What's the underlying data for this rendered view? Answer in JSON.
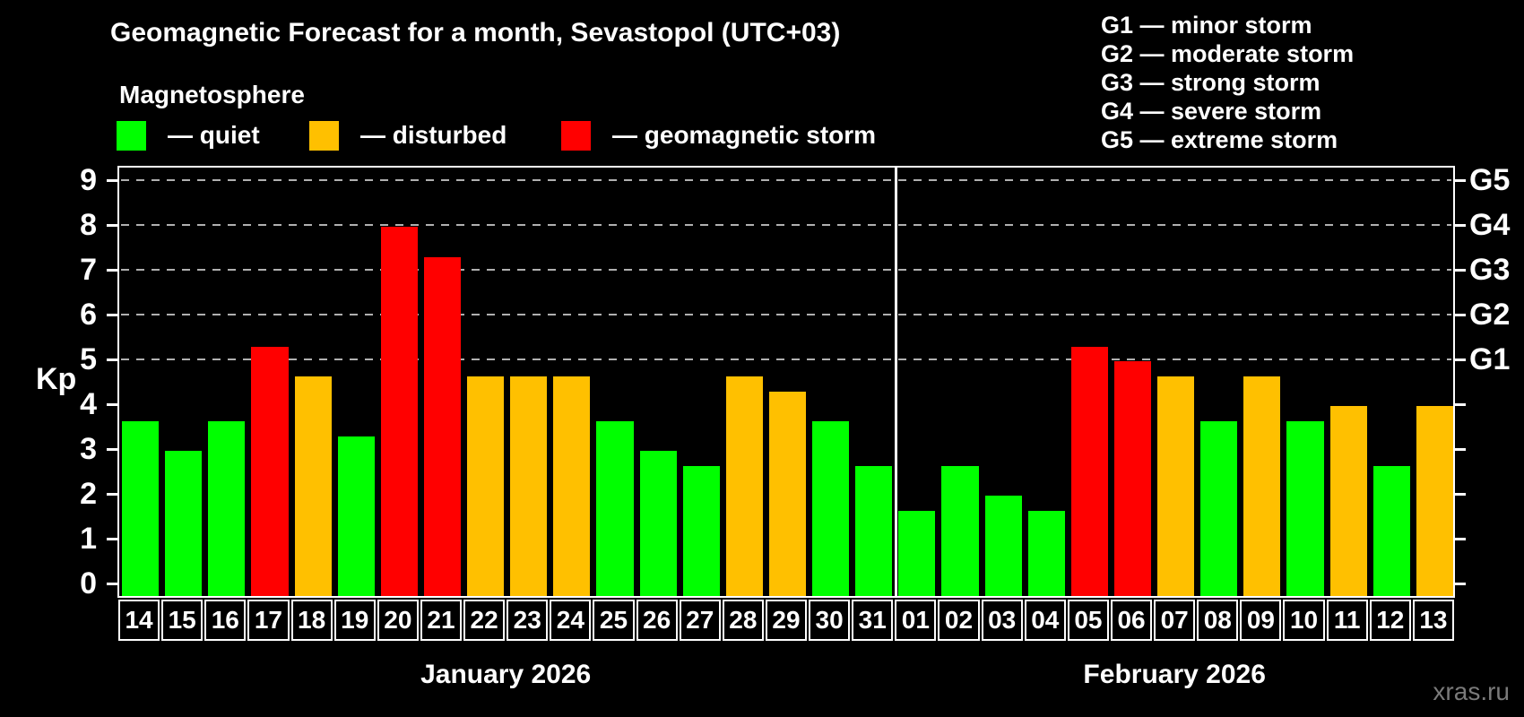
{
  "title": "Geomagnetic Forecast for a month, Sevastopol (UTC+03)",
  "subtitle": "Magnetosphere",
  "legend": {
    "items": [
      {
        "key": "quiet",
        "label": "— quiet",
        "color": "#00ff00"
      },
      {
        "key": "disturbed",
        "label": "— disturbed",
        "color": "#ffc000"
      },
      {
        "key": "storm",
        "label": "— geomagnetic storm",
        "color": "#ff0000"
      }
    ]
  },
  "g_legend": [
    "G1 — minor storm",
    "G2 — moderate storm",
    "G3 — strong storm",
    "G4 — severe storm",
    "G5 — extreme storm"
  ],
  "axes": {
    "y_label": "Kp",
    "y_ticks": [
      0,
      1,
      2,
      3,
      4,
      5,
      6,
      7,
      8,
      9
    ],
    "g_levels": [
      {
        "kp": 5,
        "label": "G1"
      },
      {
        "kp": 6,
        "label": "G2"
      },
      {
        "kp": 7,
        "label": "G3"
      },
      {
        "kp": 8,
        "label": "G4"
      },
      {
        "kp": 9,
        "label": "G5"
      }
    ]
  },
  "watermark": "xras.ru",
  "colors": {
    "quiet": "#00ff00",
    "disturbed": "#ffc000",
    "storm": "#ff0000",
    "grid": "#b0b0b0",
    "axis": "#ffffff",
    "watermark": "#7a7a7a",
    "background": "#000000"
  },
  "chart_data": {
    "type": "bar",
    "title": "Geomagnetic Forecast for a month, Sevastopol (UTC+03)",
    "xlabel": "",
    "ylabel": "Kp",
    "ylim": [
      0,
      9.3
    ],
    "grid": "dashed horizontal at Kp 5-9 (G1-G5)",
    "legend_position": "top-left",
    "months": [
      {
        "label": "January 2026",
        "days": [
          "14",
          "15",
          "16",
          "17",
          "18",
          "19",
          "20",
          "21",
          "22",
          "23",
          "24",
          "25",
          "26",
          "27",
          "28",
          "29",
          "30",
          "31"
        ],
        "values": [
          3.67,
          3.0,
          3.67,
          5.33,
          4.67,
          3.33,
          8.0,
          7.33,
          4.67,
          4.67,
          4.67,
          3.67,
          3.0,
          2.67,
          4.67,
          4.33,
          3.67,
          2.67
        ],
        "status": [
          "quiet",
          "quiet",
          "quiet",
          "storm",
          "disturbed",
          "quiet",
          "storm",
          "storm",
          "disturbed",
          "disturbed",
          "disturbed",
          "quiet",
          "quiet",
          "quiet",
          "disturbed",
          "disturbed",
          "quiet",
          "quiet"
        ]
      },
      {
        "label": "February 2026",
        "days": [
          "01",
          "02",
          "03",
          "04",
          "05",
          "06",
          "07",
          "08",
          "09",
          "10",
          "11",
          "12",
          "13"
        ],
        "values": [
          1.67,
          2.67,
          2.0,
          1.67,
          5.33,
          5.0,
          4.67,
          3.67,
          4.67,
          3.67,
          4.0,
          2.67,
          4.0
        ],
        "status": [
          "quiet",
          "quiet",
          "quiet",
          "quiet",
          "storm",
          "storm",
          "disturbed",
          "quiet",
          "disturbed",
          "quiet",
          "disturbed",
          "quiet",
          "disturbed"
        ]
      }
    ]
  }
}
